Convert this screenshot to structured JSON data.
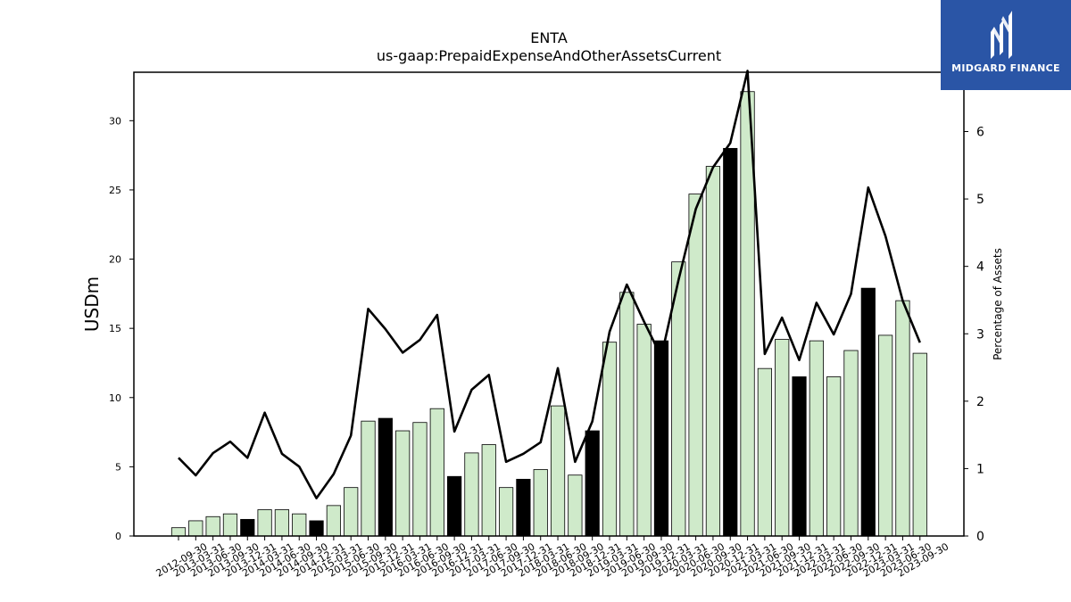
{
  "chart_data": {
    "type": "bar",
    "title": "ENTA",
    "subtitle": "us-gaap:PrepaidExpenseAndOtherAssetsCurrent",
    "ylabel": "USDm",
    "y2label": "Percentage of Assets",
    "ylim": [
      0,
      33.5
    ],
    "y2lim": [
      0,
      6.88
    ],
    "yticks": [
      0,
      5,
      10,
      15,
      20,
      25,
      30
    ],
    "y2ticks": [
      0,
      1,
      2,
      3,
      4,
      5,
      6
    ],
    "categories": [
      "2012-09-30",
      "2013-03-31",
      "2013-06-30",
      "2013-09-30",
      "2013-12-31",
      "2014-03-31",
      "2014-06-30",
      "2014-09-30",
      "2014-12-31",
      "2015-03-31",
      "2015-06-30",
      "2015-09-30",
      "2015-12-31",
      "2016-03-31",
      "2016-06-30",
      "2016-09-30",
      "2016-12-31",
      "2017-03-31",
      "2017-06-30",
      "2017-09-30",
      "2017-12-31",
      "2018-03-31",
      "2018-06-30",
      "2018-09-30",
      "2018-12-31",
      "2019-03-31",
      "2019-06-30",
      "2019-09-30",
      "2019-12-31",
      "2020-03-31",
      "2020-06-30",
      "2020-09-30",
      "2020-12-31",
      "2021-03-31",
      "2021-06-30",
      "2021-09-30",
      "2021-12-31",
      "2022-03-31",
      "2022-06-30",
      "2022-09-30",
      "2022-12-31",
      "2023-03-31",
      "2023-06-30",
      "2023-09-30"
    ],
    "series": [
      {
        "type": "bar",
        "values": [
          0.6,
          1.1,
          1.4,
          1.6,
          1.2,
          1.9,
          1.9,
          1.6,
          1.1,
          2.2,
          3.5,
          8.3,
          8.5,
          7.6,
          8.2,
          9.2,
          4.3,
          6.0,
          6.6,
          3.5,
          4.1,
          4.8,
          9.4,
          4.4,
          7.6,
          14.0,
          17.6,
          15.3,
          14.1,
          19.8,
          24.7,
          26.7,
          28.0,
          32.1,
          12.1,
          14.2,
          11.5,
          14.1,
          11.5,
          13.4,
          17.9,
          14.5,
          17.0,
          13.2
        ],
        "highlight": [
          false,
          false,
          false,
          false,
          true,
          false,
          false,
          false,
          true,
          false,
          false,
          false,
          true,
          false,
          false,
          false,
          true,
          false,
          false,
          false,
          true,
          false,
          false,
          false,
          true,
          false,
          false,
          false,
          true,
          false,
          false,
          false,
          true,
          false,
          false,
          false,
          true,
          false,
          false,
          false,
          true,
          false,
          false,
          false
        ]
      },
      {
        "type": "line",
        "axis": "right",
        "values": [
          1.16,
          0.9,
          1.23,
          1.4,
          1.16,
          1.83,
          1.22,
          1.03,
          0.56,
          0.92,
          1.49,
          3.37,
          3.07,
          2.72,
          2.91,
          3.28,
          1.55,
          2.17,
          2.39,
          1.1,
          1.22,
          1.39,
          2.49,
          1.1,
          1.7,
          3.03,
          3.73,
          3.18,
          2.66,
          3.8,
          4.85,
          5.47,
          5.83,
          6.9,
          2.7,
          3.24,
          2.61,
          3.46,
          2.99,
          3.59,
          5.17,
          4.45,
          3.49,
          2.87
        ]
      }
    ],
    "colors": {
      "bar": "#cfeaca",
      "bar_highlight": "#000000",
      "line": "#000000"
    }
  },
  "logo": {
    "text": "MIDGARD FINANCE",
    "bg": "#2a55a6"
  }
}
